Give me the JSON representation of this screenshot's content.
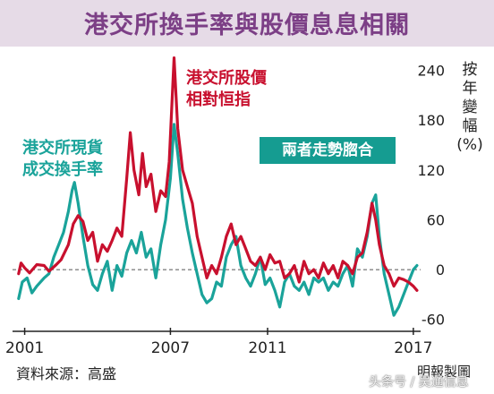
{
  "title": "港交所換手率與股價息息相關",
  "chart_data": {
    "type": "line",
    "ylabel": "按年變幅(%)",
    "ylim": [
      -70,
      260
    ],
    "xlim": [
      2000.5,
      2017.3
    ],
    "x_ticks": [
      2001,
      2007,
      2011,
      2017
    ],
    "y_ticks": [
      240,
      180,
      120,
      60,
      0,
      -60
    ],
    "baseline": 0,
    "series": [
      {
        "name": "港交所股價相對恒指",
        "color": "#c8102e",
        "points": [
          [
            2000.75,
            -5
          ],
          [
            2000.85,
            8
          ],
          [
            2001.0,
            2
          ],
          [
            2001.2,
            -4
          ],
          [
            2001.5,
            6
          ],
          [
            2001.8,
            5
          ],
          [
            2002.0,
            -2
          ],
          [
            2002.3,
            6
          ],
          [
            2002.5,
            12
          ],
          [
            2002.8,
            30
          ],
          [
            2003.0,
            55
          ],
          [
            2003.2,
            65
          ],
          [
            2003.4,
            58
          ],
          [
            2003.6,
            35
          ],
          [
            2003.8,
            45
          ],
          [
            2004.0,
            10
          ],
          [
            2004.2,
            30
          ],
          [
            2004.4,
            22
          ],
          [
            2004.6,
            35
          ],
          [
            2004.8,
            50
          ],
          [
            2005.0,
            40
          ],
          [
            2005.2,
            110
          ],
          [
            2005.35,
            165
          ],
          [
            2005.5,
            120
          ],
          [
            2005.7,
            90
          ],
          [
            2005.85,
            140
          ],
          [
            2006.0,
            100
          ],
          [
            2006.2,
            115
          ],
          [
            2006.4,
            70
          ],
          [
            2006.6,
            95
          ],
          [
            2006.8,
            88
          ],
          [
            2006.95,
            130
          ],
          [
            2007.15,
            255
          ],
          [
            2007.3,
            170
          ],
          [
            2007.5,
            120
          ],
          [
            2007.7,
            100
          ],
          [
            2007.9,
            80
          ],
          [
            2008.1,
            40
          ],
          [
            2008.3,
            15
          ],
          [
            2008.5,
            -10
          ],
          [
            2008.7,
            5
          ],
          [
            2008.9,
            -5
          ],
          [
            2009.1,
            15
          ],
          [
            2009.3,
            40
          ],
          [
            2009.5,
            55
          ],
          [
            2009.7,
            30
          ],
          [
            2009.9,
            40
          ],
          [
            2010.1,
            25
          ],
          [
            2010.3,
            10
          ],
          [
            2010.5,
            5
          ],
          [
            2010.7,
            15
          ],
          [
            2010.9,
            0
          ],
          [
            2011.1,
            18
          ],
          [
            2011.3,
            8
          ],
          [
            2011.5,
            10
          ],
          [
            2011.7,
            -10
          ],
          [
            2011.9,
            -5
          ],
          [
            2012.1,
            5
          ],
          [
            2012.3,
            -15
          ],
          [
            2012.5,
            10
          ],
          [
            2012.7,
            -5
          ],
          [
            2012.9,
            0
          ],
          [
            2013.1,
            -10
          ],
          [
            2013.3,
            8
          ],
          [
            2013.5,
            -5
          ],
          [
            2013.7,
            5
          ],
          [
            2013.9,
            -10
          ],
          [
            2014.1,
            10
          ],
          [
            2014.3,
            5
          ],
          [
            2014.5,
            -5
          ],
          [
            2014.7,
            15
          ],
          [
            2014.9,
            20
          ],
          [
            2015.1,
            45
          ],
          [
            2015.3,
            80
          ],
          [
            2015.45,
            60
          ],
          [
            2015.6,
            30
          ],
          [
            2015.8,
            5
          ],
          [
            2016.0,
            -5
          ],
          [
            2016.2,
            -20
          ],
          [
            2016.4,
            -10
          ],
          [
            2016.6,
            -12
          ],
          [
            2016.8,
            -15
          ],
          [
            2017.0,
            -20
          ],
          [
            2017.15,
            -25
          ]
        ]
      },
      {
        "name": "港交所現貨成交換手率",
        "color": "#1aa39a",
        "points": [
          [
            2000.75,
            -35
          ],
          [
            2000.9,
            -15
          ],
          [
            2001.1,
            -10
          ],
          [
            2001.3,
            -28
          ],
          [
            2001.5,
            -20
          ],
          [
            2001.8,
            -10
          ],
          [
            2002.0,
            -5
          ],
          [
            2002.2,
            15
          ],
          [
            2002.4,
            30
          ],
          [
            2002.6,
            45
          ],
          [
            2002.8,
            70
          ],
          [
            2002.95,
            95
          ],
          [
            2003.05,
            105
          ],
          [
            2003.2,
            80
          ],
          [
            2003.4,
            40
          ],
          [
            2003.6,
            5
          ],
          [
            2003.8,
            -18
          ],
          [
            2004.0,
            -25
          ],
          [
            2004.2,
            -5
          ],
          [
            2004.4,
            10
          ],
          [
            2004.6,
            -25
          ],
          [
            2004.8,
            5
          ],
          [
            2005.0,
            -8
          ],
          [
            2005.2,
            20
          ],
          [
            2005.4,
            35
          ],
          [
            2005.6,
            20
          ],
          [
            2005.8,
            45
          ],
          [
            2006.0,
            15
          ],
          [
            2006.2,
            25
          ],
          [
            2006.4,
            -10
          ],
          [
            2006.6,
            30
          ],
          [
            2006.8,
            60
          ],
          [
            2007.0,
            110
          ],
          [
            2007.15,
            175
          ],
          [
            2007.3,
            140
          ],
          [
            2007.5,
            85
          ],
          [
            2007.7,
            50
          ],
          [
            2007.9,
            20
          ],
          [
            2008.1,
            -5
          ],
          [
            2008.3,
            -30
          ],
          [
            2008.5,
            -40
          ],
          [
            2008.7,
            -35
          ],
          [
            2008.9,
            -15
          ],
          [
            2009.1,
            -20
          ],
          [
            2009.3,
            15
          ],
          [
            2009.5,
            30
          ],
          [
            2009.7,
            40
          ],
          [
            2009.9,
            5
          ],
          [
            2010.1,
            -10
          ],
          [
            2010.3,
            -20
          ],
          [
            2010.5,
            -5
          ],
          [
            2010.7,
            15
          ],
          [
            2010.9,
            -18
          ],
          [
            2011.1,
            -10
          ],
          [
            2011.3,
            -25
          ],
          [
            2011.5,
            -45
          ],
          [
            2011.7,
            -15
          ],
          [
            2011.9,
            -5
          ],
          [
            2012.1,
            -20
          ],
          [
            2012.3,
            -25
          ],
          [
            2012.5,
            -15
          ],
          [
            2012.7,
            -30
          ],
          [
            2012.9,
            -10
          ],
          [
            2013.1,
            -15
          ],
          [
            2013.3,
            -10
          ],
          [
            2013.5,
            -25
          ],
          [
            2013.7,
            -15
          ],
          [
            2013.9,
            -20
          ],
          [
            2014.1,
            -5
          ],
          [
            2014.3,
            5
          ],
          [
            2014.5,
            -20
          ],
          [
            2014.7,
            25
          ],
          [
            2014.9,
            15
          ],
          [
            2015.1,
            40
          ],
          [
            2015.3,
            80
          ],
          [
            2015.45,
            90
          ],
          [
            2015.6,
            40
          ],
          [
            2015.8,
            -5
          ],
          [
            2016.0,
            -30
          ],
          [
            2016.2,
            -55
          ],
          [
            2016.4,
            -45
          ],
          [
            2016.6,
            -30
          ],
          [
            2016.8,
            -15
          ],
          [
            2017.0,
            0
          ],
          [
            2017.15,
            5
          ]
        ]
      }
    ]
  },
  "annotations": {
    "price_label": [
      "港交所股價",
      "相對恒指"
    ],
    "turnover_label": [
      "港交所現貨",
      "成交換手率"
    ],
    "highlight": "兩者走勢脗合"
  },
  "unit_label": [
    "按",
    "年",
    "變",
    "幅",
    "(%)"
  ],
  "source": "資料來源：高盛",
  "credit": "明報製圖",
  "watermark": "头条号 / 吴通信息"
}
